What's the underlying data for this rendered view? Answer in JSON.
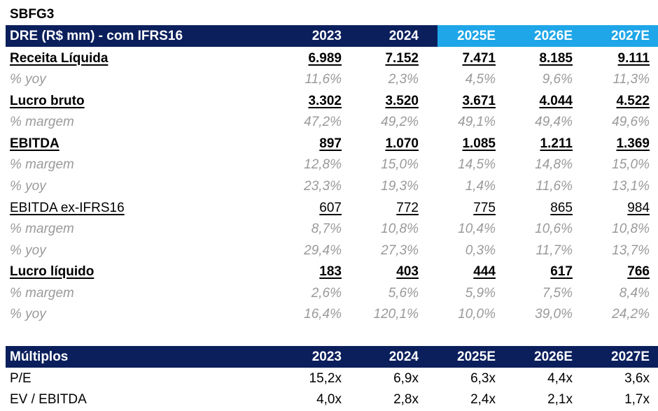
{
  "ticker": "SBFG3",
  "dre": {
    "header": {
      "label": "DRE (R$ mm) - com IFRS16",
      "years": [
        "2023",
        "2024",
        "2025E",
        "2026E",
        "2027E"
      ]
    },
    "rows": [
      {
        "label": "Receita Líquida",
        "values": [
          "6.989",
          "7.152",
          "7.471",
          "8.185",
          "9.111"
        ]
      },
      {
        "label": "% yoy",
        "values": [
          "11,6%",
          "2,3%",
          "4,5%",
          "9,6%",
          "11,3%"
        ]
      },
      {
        "label": "Lucro bruto",
        "values": [
          "3.302",
          "3.520",
          "3.671",
          "4.044",
          "4.522"
        ]
      },
      {
        "label": "% margem",
        "values": [
          "47,2%",
          "49,2%",
          "49,1%",
          "49,4%",
          "49,6%"
        ]
      },
      {
        "label": "EBITDA",
        "values": [
          "897",
          "1.070",
          "1.085",
          "1.211",
          "1.369"
        ]
      },
      {
        "label": "% margem",
        "values": [
          "12,8%",
          "15,0%",
          "14,5%",
          "14,8%",
          "15,0%"
        ]
      },
      {
        "label": "% yoy",
        "values": [
          "23,3%",
          "19,3%",
          "1,4%",
          "11,6%",
          "13,1%"
        ]
      },
      {
        "label": "EBITDA ex-IFRS16",
        "values": [
          "607",
          "772",
          "775",
          "865",
          "984"
        ]
      },
      {
        "label": "% margem",
        "values": [
          "8,7%",
          "10,8%",
          "10,4%",
          "10,6%",
          "10,8%"
        ]
      },
      {
        "label": "% yoy",
        "values": [
          "29,4%",
          "27,3%",
          "0,3%",
          "11,7%",
          "13,7%"
        ]
      },
      {
        "label": "Lucro líquido",
        "values": [
          "183",
          "403",
          "444",
          "617",
          "766"
        ]
      },
      {
        "label": "% margem",
        "values": [
          "2,6%",
          "5,6%",
          "5,9%",
          "7,5%",
          "8,4%"
        ]
      },
      {
        "label": "% yoy",
        "values": [
          "16,4%",
          "120,1%",
          "10,0%",
          "39,0%",
          "24,2%"
        ]
      }
    ]
  },
  "multiplos": {
    "header": {
      "label": "Múltiplos",
      "years": [
        "2023",
        "2024",
        "2025E",
        "2026E",
        "2027E"
      ]
    },
    "rows": [
      {
        "label": "P/E",
        "values": [
          "15,2x",
          "6,9x",
          "6,3x",
          "4,4x",
          "3,6x"
        ]
      },
      {
        "label": "EV / EBITDA",
        "values": [
          "4,0x",
          "2,8x",
          "2,4x",
          "2,1x",
          "1,7x"
        ]
      }
    ]
  },
  "colors": {
    "header_bg": "#0b1f5c",
    "estimate_header_bg": "#1ea6e8",
    "percent_text": "#9a9a9a"
  }
}
